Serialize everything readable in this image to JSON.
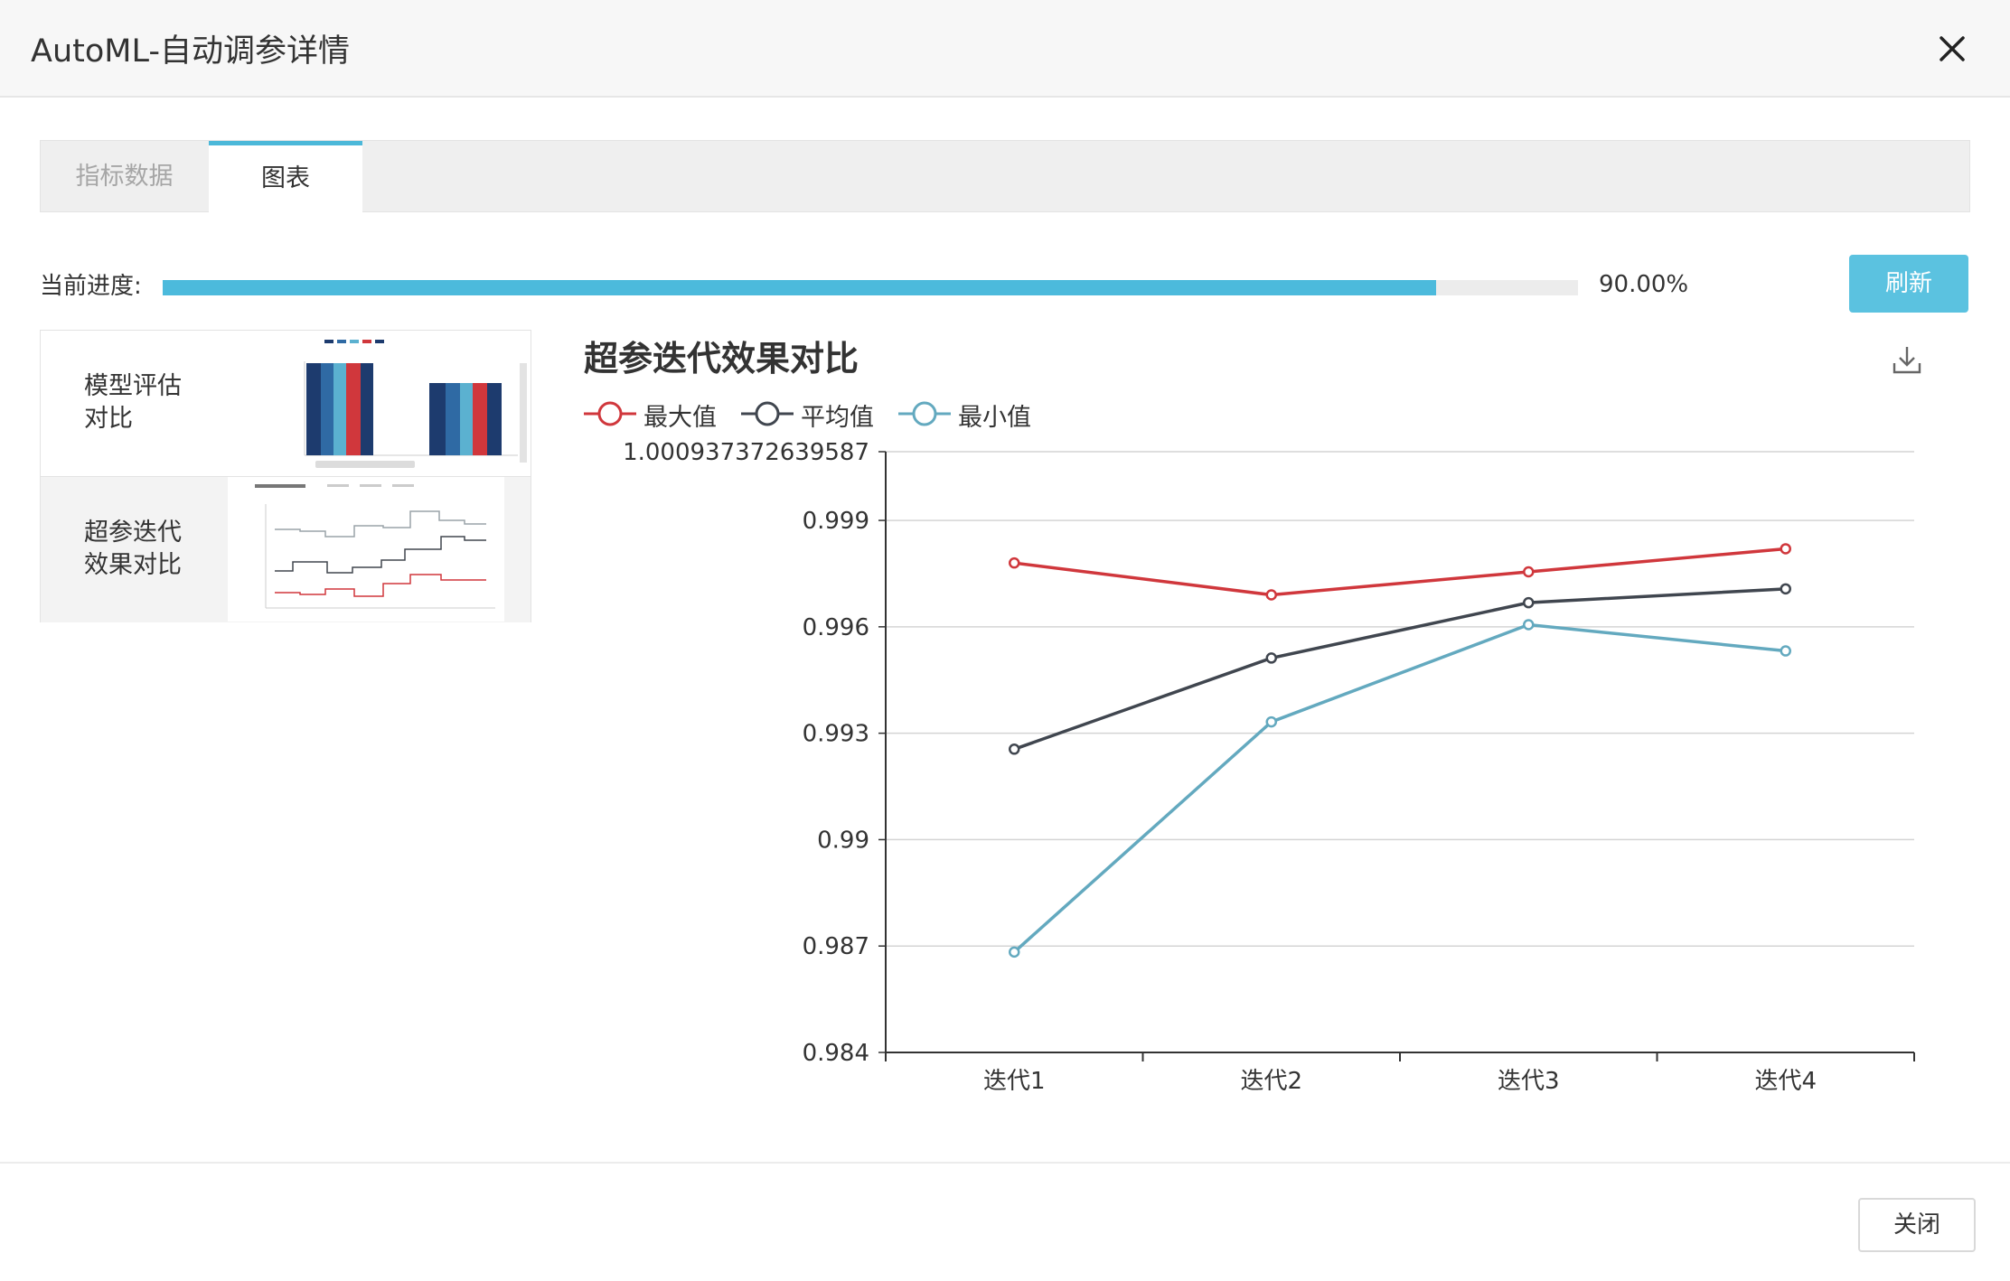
{
  "dialog": {
    "title": "AutoML-自动调参详情",
    "close_icon": "close-icon",
    "close_button_label": "关闭"
  },
  "tabs": [
    {
      "label": "指标数据",
      "active": false
    },
    {
      "label": "图表",
      "active": true
    }
  ],
  "progress": {
    "label": "当前进度:",
    "value": 0.9,
    "text": "90.00%",
    "refresh_label": "刷新",
    "fill_color": "#4cbadc"
  },
  "sidebar": {
    "items": [
      {
        "label_line1": "模型评估",
        "label_line2": "对比",
        "selected": false
      },
      {
        "label_line1": "超参迭代",
        "label_line2": "效果对比",
        "selected": true
      }
    ]
  },
  "chart_panel": {
    "download_icon": "download-icon"
  },
  "chart_data": {
    "type": "line",
    "title": "超参迭代效果对比",
    "categories": [
      "迭代1",
      "迭代2",
      "迭代3",
      "迭代4"
    ],
    "y_tick_labels": [
      "1.000937372639587",
      "0.999",
      "0.996",
      "0.993",
      "0.99",
      "0.987",
      "0.984"
    ],
    "ylim": [
      0.984,
      1.000937372639587
    ],
    "grid": true,
    "legend_position": "top-left",
    "series": [
      {
        "name": "最大值",
        "color": "#d0373c",
        "values": [
          0.9978,
          0.9969,
          0.99755,
          0.9982
        ]
      },
      {
        "name": "平均值",
        "color": "#40464f",
        "values": [
          0.99255,
          0.99512,
          0.99668,
          0.99707
        ]
      },
      {
        "name": "最小值",
        "color": "#63a9bf",
        "values": [
          0.98683,
          0.99332,
          0.99606,
          0.99532
        ]
      }
    ]
  }
}
